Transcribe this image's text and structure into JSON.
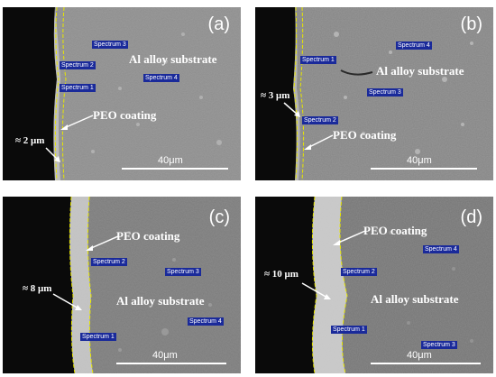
{
  "panels": [
    {
      "letter": "(a)",
      "substrate_label": "Al alloy substrate",
      "coating_label": "PEO coating",
      "thickness": "≈ 2 μm",
      "scale": "40μm",
      "spectra": [
        "Spectrum 3",
        "Spectrum 2",
        "Spectrum 1",
        "Spectrum 4"
      ]
    },
    {
      "letter": "(b)",
      "substrate_label": "Al alloy substrate",
      "coating_label": "PEO coating",
      "thickness": "≈ 3 μm",
      "scale": "40μm",
      "spectra": [
        "Spectrum 1",
        "Spectrum 4",
        "Spectrum 3",
        "Spectrum 2"
      ]
    },
    {
      "letter": "(c)",
      "substrate_label": "Al alloy substrate",
      "coating_label": "PEO coating",
      "thickness": "≈ 8 μm",
      "scale": "40μm",
      "spectra": [
        "Spectrum 2",
        "Spectrum 3",
        "Spectrum 4",
        "Spectrum 1"
      ]
    },
    {
      "letter": "(d)",
      "substrate_label": "Al alloy substrate",
      "coating_label": "PEO coating",
      "thickness": "≈ 10 μm",
      "scale": "40μm",
      "spectra": [
        "Spectrum 4",
        "Spectrum 2",
        "Spectrum 1",
        "Spectrum 3"
      ]
    }
  ],
  "colors": {
    "background_dark": "#0a0a0a",
    "substrate_gray": "#8a8a8a",
    "coating_boundary": "#e6e600",
    "spectrum_tag": "#1a2a9a"
  }
}
